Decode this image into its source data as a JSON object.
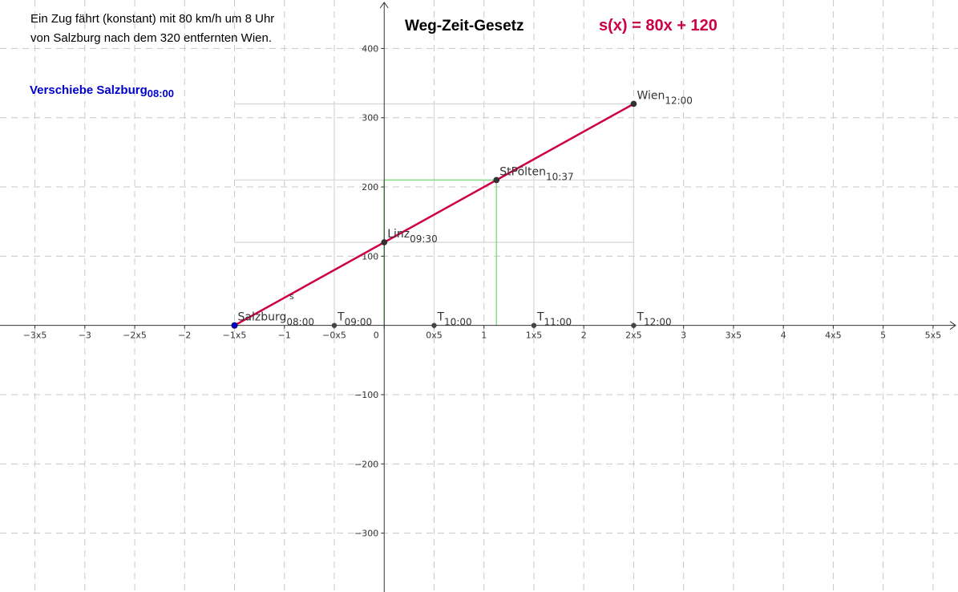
{
  "description": {
    "line1": "Ein Zug fährt (konstant) mit 80 km/h um 8 Uhr",
    "line2": "von Salzburg nach dem 320 entfernten Wien."
  },
  "title": "Weg-Zeit-Gesetz",
  "formula": "s(x) = 80x + 120",
  "drag_hint": {
    "text": "Verschiebe  Salzburg",
    "sub": "08:00"
  },
  "colors": {
    "line": "#cc0044",
    "salzburg": "#0000cc",
    "guide": "#8fdc8f",
    "grid": "#c8c8c8",
    "axis": "#333333"
  },
  "chart_data": {
    "type": "line",
    "function": {
      "label": "s",
      "slope": 80,
      "intercept": 120
    },
    "x_tick_labels": [
      "−3x5",
      "−3",
      "−2x5",
      "−2",
      "−1x5",
      "−1",
      "−0x5",
      "0",
      "0x5",
      "1",
      "1x5",
      "2",
      "2x5",
      "3",
      "3x5",
      "4",
      "4x5",
      "5",
      "5x5"
    ],
    "x_tick_values": [
      -3.5,
      -3,
      -2.5,
      -2,
      -1.5,
      -1,
      -0.5,
      0,
      0.5,
      1,
      1.5,
      2,
      2.5,
      3,
      3.5,
      4,
      4.5,
      5,
      5.5
    ],
    "y_tick_labels": [
      "400",
      "300",
      "200",
      "100",
      "−100",
      "−200",
      "−300"
    ],
    "y_tick_values": [
      400,
      300,
      200,
      100,
      -100,
      -200,
      -300
    ],
    "xlim": [
      -3.85,
      5.75
    ],
    "ylim": [
      -385,
      470
    ],
    "points": [
      {
        "name": "Salzburg",
        "sub": "08:00",
        "x": -1.5,
        "y": 0,
        "color": "#0000cc"
      },
      {
        "name": "Linz",
        "sub": "09:30",
        "x": 0,
        "y": 120,
        "color": "#333333"
      },
      {
        "name": "StPölten",
        "sub": "10:37",
        "x": 1.125,
        "y": 210,
        "color": "#333333"
      },
      {
        "name": "Wien",
        "sub": "12:00",
        "x": 2.5,
        "y": 320,
        "color": "#333333"
      }
    ],
    "time_markers": [
      {
        "name": "T",
        "sub": "09:00",
        "x": -0.5,
        "y": 0
      },
      {
        "name": "T",
        "sub": "10:00",
        "x": 0.5,
        "y": 0
      },
      {
        "name": "T",
        "sub": "11:00",
        "x": 1.5,
        "y": 0
      },
      {
        "name": "T",
        "sub": "12:00",
        "x": 2.5,
        "y": 0
      }
    ],
    "grid": true
  }
}
